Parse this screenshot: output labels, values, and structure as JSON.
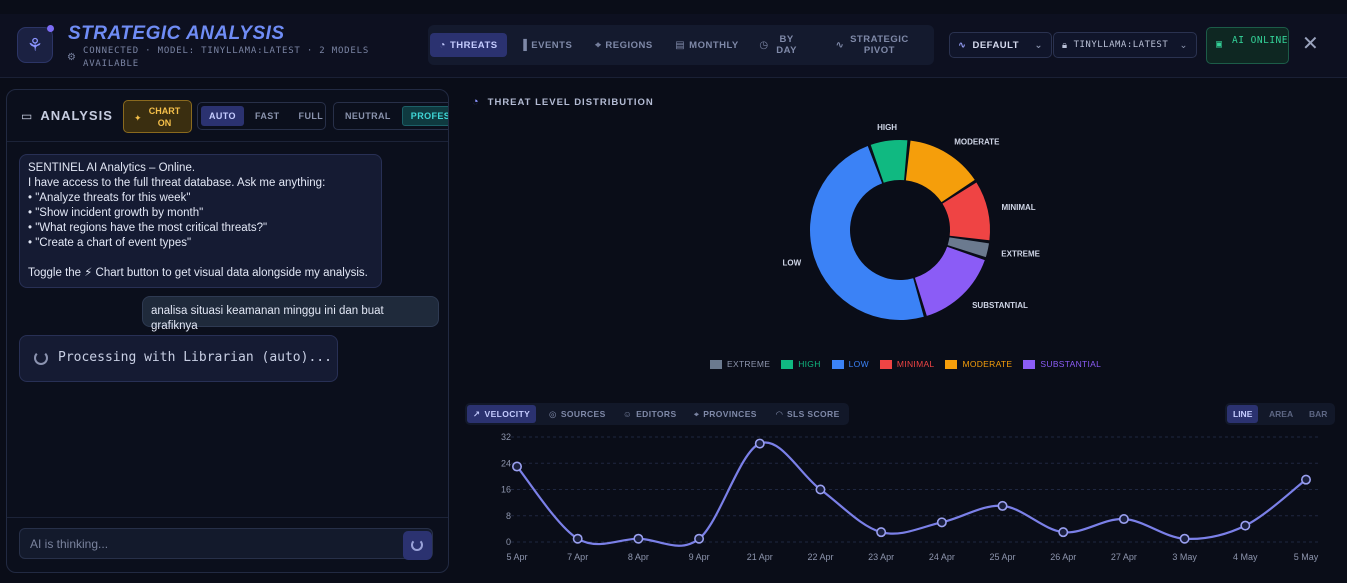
{
  "header": {
    "title": "STRATEGIC ANALYSIS",
    "subtitle": "CONNECTED · MODEL: TINYLLAMA:LATEST · 2 MODELS AVAILABLE",
    "tabs": [
      {
        "label": "THREATS",
        "icon": "pie-icon",
        "active": true
      },
      {
        "label": "EVENTS",
        "icon": "bar-chart-icon"
      },
      {
        "label": "REGIONS",
        "icon": "map-pin-icon"
      },
      {
        "label": "MONTHLY",
        "icon": "calendar-icon"
      },
      {
        "label": "BY DAY",
        "icon": "clock-icon"
      },
      {
        "label": "STRATEGIC PIVOT",
        "icon": "activity-icon"
      }
    ],
    "preset": "DEFAULT",
    "model": "TINYLLAMA:LATEST",
    "ai_status": "AI ONLINE"
  },
  "left": {
    "title": "ANALYSIS",
    "chart_toggle": "CHART ON",
    "modes": [
      "AUTO",
      "FAST",
      "FULL"
    ],
    "active_mode": "AUTO",
    "tones": [
      "NEUTRAL",
      "PROFESSIONAL"
    ],
    "active_tone": "PROFESSIONAL",
    "bot_message_lines": [
      "SENTINEL AI Analytics – Online.",
      "I have access to the full threat database. Ask me anything:",
      "• \"Analyze threats for this week\"",
      "• \"Show incident growth by month\"",
      "• \"What regions have the most critical threats?\"",
      "• \"Create a chart of event types\"",
      "",
      "Toggle the ⚡ Chart button to get visual data alongside my analysis."
    ],
    "user_message": "analisa situasi keamanan minggu ini dan buat grafiknya",
    "processing": "Processing with Librarian (auto)...",
    "input_placeholder": "AI is thinking..."
  },
  "donut": {
    "title": "THREAT LEVEL DISTRIBUTION"
  },
  "line": {
    "tabs": [
      "VELOCITY",
      "SOURCES",
      "EDITORS",
      "PROVINCES",
      "SLS SCORE"
    ],
    "active_tab": "VELOCITY",
    "types": [
      "LINE",
      "AREA",
      "BAR"
    ],
    "active_type": "LINE"
  },
  "colors": {
    "EXTREME": "#6b7a8f",
    "HIGH": "#10b981",
    "LOW": "#3b82f6",
    "MINIMAL": "#ef4444",
    "MODERATE": "#f59e0b",
    "SUBSTANTIAL": "#8b5cf6",
    "line": "#7b80e8"
  },
  "chart_data": [
    {
      "type": "pie",
      "title": "THREAT LEVEL DISTRIBUTION",
      "categories": [
        "EXTREME",
        "HIGH",
        "LOW",
        "MINIMAL",
        "MODERATE",
        "SUBSTANTIAL"
      ],
      "values": [
        3,
        7,
        48,
        11,
        14,
        15
      ],
      "legend": "bottom"
    },
    {
      "type": "line",
      "categories": [
        "5 Apr",
        "7 Apr",
        "8 Apr",
        "9 Apr",
        "21 Apr",
        "22 Apr",
        "23 Apr",
        "24 Apr",
        "25 Apr",
        "26 Apr",
        "27 Apr",
        "3 May",
        "4 May",
        "5 May"
      ],
      "values": [
        23,
        1,
        1,
        1,
        30,
        16,
        3,
        6,
        11,
        3,
        7,
        1,
        5,
        19
      ],
      "yticks": [
        0,
        8,
        16,
        24,
        32
      ],
      "ylim": [
        0,
        32
      ],
      "grid": true
    }
  ]
}
